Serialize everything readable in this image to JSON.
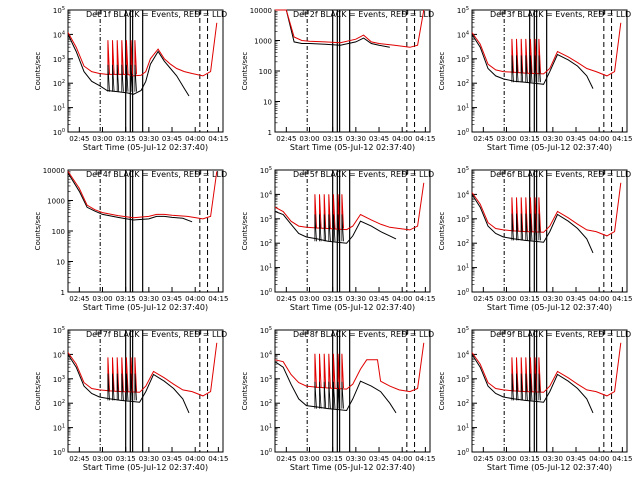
{
  "colors": {
    "events": "#000000",
    "lld": "#e00000",
    "frame": "#000000",
    "background": "#ffffff"
  },
  "x_axis": {
    "label": "Start Time (05-Jul-12 02:37:40)",
    "ticks": [
      "02:45",
      "03:00",
      "03:15",
      "03:30",
      "03:45",
      "04:00",
      "04:15"
    ]
  },
  "y_axis_label": "Counts/sec",
  "chart_data": [
    {
      "type": "line",
      "title": "Det 1f BLACK = Events, RED = LLD",
      "ylabel": "Counts/sec",
      "yscale": "log",
      "ylim": [
        1,
        100000
      ],
      "ytick_labels": [
        "10^0",
        "10^1",
        "10^2",
        "10^3",
        "10^4",
        "10^5"
      ],
      "xlabel": "Start Time (05-Jul-12 02:37:40)",
      "xlim": [
        "02:37:40",
        "04:18:00"
      ],
      "series": [
        {
          "name": "Events",
          "color": "#000000",
          "x": [
            "02:37:40",
            "02:43:00",
            "02:48:00",
            "02:53:00",
            "02:58:00",
            "03:03:00",
            "03:10:00",
            "03:16:00",
            "03:20:00",
            "03:25:00",
            "03:28:00",
            "03:31:00",
            "03:36:00",
            "03:40:00",
            "03:44:00",
            "03:48:00",
            "03:53:00",
            "03:56:00"
          ],
          "y": [
            10000,
            2000,
            300,
            120,
            80,
            50,
            45,
            40,
            35,
            50,
            120,
            600,
            2000,
            800,
            400,
            200,
            60,
            30
          ]
        },
        {
          "name": "LLD",
          "color": "#e00000",
          "x": [
            "02:37:40",
            "02:43:00",
            "02:48:00",
            "02:53:00",
            "02:58:00",
            "03:03:00",
            "03:10:00",
            "03:16:00",
            "03:20:00",
            "03:25:00",
            "03:28:00",
            "03:31:00",
            "03:36:00",
            "03:40:00",
            "03:44:00",
            "03:48:00",
            "03:53:00",
            "03:58:00",
            "04:05:00",
            "04:10:00",
            "04:14:00"
          ],
          "y": [
            12000,
            3000,
            500,
            300,
            250,
            230,
            230,
            230,
            200,
            210,
            300,
            1000,
            2500,
            1000,
            600,
            400,
            300,
            250,
            200,
            300,
            30000
          ]
        }
      ]
    },
    {
      "type": "line",
      "title": "Det 2f BLACK = Events, RED = LLD",
      "ylabel": "Counts/sec",
      "yscale": "log",
      "ylim": [
        1,
        10000
      ],
      "ytick_labels": [
        "1",
        "10",
        "100",
        "1000",
        "10000"
      ],
      "xlabel": "Start Time (05-Jul-12 02:37:40)",
      "xlim": [
        "02:37:40",
        "04:18:00"
      ],
      "series": [
        {
          "name": "Events",
          "color": "#000000",
          "x": [
            "02:37:40",
            "02:45:00",
            "02:50:00",
            "02:55:00",
            "03:00:00",
            "03:10:00",
            "03:20:00",
            "03:30:00",
            "03:35:00",
            "03:40:00",
            "03:45:00",
            "03:52:00"
          ],
          "y": [
            10000,
            10000,
            900,
            800,
            800,
            750,
            700,
            900,
            1200,
            800,
            700,
            600
          ]
        },
        {
          "name": "LLD",
          "color": "#e00000",
          "x": [
            "02:37:40",
            "02:45:00",
            "02:50:00",
            "02:55:00",
            "03:00:00",
            "03:10:00",
            "03:20:00",
            "03:30:00",
            "03:35:00",
            "03:40:00",
            "03:45:00",
            "03:55:00",
            "04:05:00",
            "04:10:00",
            "04:14:00"
          ],
          "y": [
            10000,
            10000,
            1300,
            1000,
            950,
            900,
            850,
            1100,
            1500,
            900,
            800,
            700,
            600,
            700,
            10000
          ]
        }
      ]
    },
    {
      "type": "line",
      "title": "Det 3f BLACK = Events, RED = LLD",
      "ylabel": "Counts/sec",
      "yscale": "log",
      "ylim": [
        1,
        100000
      ],
      "ytick_labels": [
        "10^0",
        "10^1",
        "10^2",
        "10^3",
        "10^4",
        "10^5"
      ],
      "xlabel": "Start Time (05-Jul-12 02:37:40)",
      "xlim": [
        "02:37:40",
        "04:18:00"
      ],
      "series": [
        {
          "name": "Events",
          "color": "#000000",
          "x": [
            "02:37:40",
            "02:43:00",
            "02:48:00",
            "02:53:00",
            "02:58:00",
            "03:05:00",
            "03:12:00",
            "03:18:00",
            "03:24:00",
            "03:28:00",
            "03:33:00",
            "03:40:00",
            "03:46:00",
            "03:52:00",
            "03:56:00"
          ],
          "y": [
            10000,
            3000,
            400,
            200,
            150,
            120,
            110,
            100,
            90,
            300,
            1500,
            900,
            500,
            200,
            60
          ]
        },
        {
          "name": "LLD",
          "color": "#e00000",
          "x": [
            "02:37:40",
            "02:43:00",
            "02:48:00",
            "02:53:00",
            "02:58:00",
            "03:05:00",
            "03:12:00",
            "03:18:00",
            "03:24:00",
            "03:28:00",
            "03:33:00",
            "03:40:00",
            "03:46:00",
            "03:52:00",
            "03:58:00",
            "04:05:00",
            "04:10:00",
            "04:14:00"
          ],
          "y": [
            12000,
            4000,
            600,
            350,
            300,
            280,
            260,
            250,
            240,
            400,
            2000,
            1200,
            700,
            400,
            300,
            200,
            300,
            30000
          ]
        }
      ]
    },
    {
      "type": "line",
      "title": "Det 4f BLACK = Events, RED = LLD",
      "ylabel": "Counts/sec",
      "yscale": "log",
      "ylim": [
        1,
        10000
      ],
      "ytick_labels": [
        "1",
        "10",
        "100",
        "1000",
        "10000"
      ],
      "xlabel": "Start Time (05-Jul-12 02:37:40)",
      "xlim": [
        "02:37:40",
        "04:18:00"
      ],
      "series": [
        {
          "name": "Events",
          "color": "#000000",
          "x": [
            "02:37:40",
            "02:45:00",
            "02:50:00",
            "02:55:00",
            "03:00:00",
            "03:10:00",
            "03:20:00",
            "03:30:00",
            "03:35:00",
            "03:40:00",
            "03:45:00",
            "03:52:00",
            "03:58:00"
          ],
          "y": [
            8000,
            2000,
            600,
            450,
            350,
            280,
            230,
            250,
            300,
            300,
            280,
            260,
            200
          ]
        },
        {
          "name": "LLD",
          "color": "#e00000",
          "x": [
            "02:37:40",
            "02:45:00",
            "02:50:00",
            "02:55:00",
            "03:00:00",
            "03:10:00",
            "03:20:00",
            "03:30:00",
            "03:35:00",
            "03:40:00",
            "03:45:00",
            "03:55:00",
            "04:05:00",
            "04:10:00",
            "04:14:00"
          ],
          "y": [
            9000,
            2500,
            700,
            500,
            400,
            320,
            270,
            300,
            350,
            350,
            330,
            300,
            250,
            300,
            9000
          ]
        }
      ]
    },
    {
      "type": "line",
      "title": "Det 5f BLACK = Events, RED = LLD",
      "ylabel": "Counts/sec",
      "yscale": "log",
      "ylim": [
        1,
        100000
      ],
      "ytick_labels": [
        "10^0",
        "10^1",
        "10^2",
        "10^3",
        "10^4",
        "10^5"
      ],
      "xlabel": "Start Time (05-Jul-12 02:37:40)",
      "xlim": [
        "02:37:40",
        "04:18:00"
      ],
      "series": [
        {
          "name": "Events",
          "color": "#000000",
          "x": [
            "02:37:40",
            "02:43:00",
            "02:48:00",
            "02:53:00",
            "02:58:00",
            "03:05:00",
            "03:12:00",
            "03:18:00",
            "03:24:00",
            "03:28:00",
            "03:33:00",
            "03:40:00",
            "03:46:00",
            "03:52:00",
            "03:56:00"
          ],
          "y": [
            2000,
            1500,
            600,
            250,
            180,
            150,
            120,
            110,
            100,
            200,
            800,
            500,
            300,
            200,
            150
          ]
        },
        {
          "name": "LLD",
          "color": "#e00000",
          "x": [
            "02:37:40",
            "02:43:00",
            "02:48:00",
            "02:53:00",
            "02:58:00",
            "03:05:00",
            "03:12:00",
            "03:18:00",
            "03:24:00",
            "03:28:00",
            "03:33:00",
            "03:40:00",
            "03:46:00",
            "03:52:00",
            "03:58:00",
            "04:05:00",
            "04:10:00",
            "04:14:00"
          ],
          "y": [
            3000,
            2000,
            800,
            500,
            450,
            420,
            400,
            380,
            360,
            500,
            1500,
            900,
            600,
            450,
            400,
            350,
            500,
            30000
          ]
        }
      ]
    },
    {
      "type": "line",
      "title": "Det 6f BLACK = Events, RED = LLD",
      "ylabel": "Counts/sec",
      "yscale": "log",
      "ylim": [
        1,
        100000
      ],
      "ytick_labels": [
        "10^0",
        "10^1",
        "10^2",
        "10^3",
        "10^4",
        "10^5"
      ],
      "xlabel": "Start Time (05-Jul-12 02:37:40)",
      "xlim": [
        "02:37:40",
        "04:18:00"
      ],
      "series": [
        {
          "name": "Events",
          "color": "#000000",
          "x": [
            "02:37:40",
            "02:43:00",
            "02:48:00",
            "02:53:00",
            "02:58:00",
            "03:05:00",
            "03:12:00",
            "03:18:00",
            "03:24:00",
            "03:28:00",
            "03:33:00",
            "03:40:00",
            "03:46:00",
            "03:52:00",
            "03:56:00"
          ],
          "y": [
            10000,
            3000,
            500,
            250,
            180,
            150,
            130,
            120,
            110,
            300,
            1500,
            800,
            400,
            150,
            40
          ]
        },
        {
          "name": "LLD",
          "color": "#e00000",
          "x": [
            "02:37:40",
            "02:43:00",
            "02:48:00",
            "02:53:00",
            "02:58:00",
            "03:05:00",
            "03:12:00",
            "03:18:00",
            "03:24:00",
            "03:28:00",
            "03:33:00",
            "03:40:00",
            "03:46:00",
            "03:52:00",
            "03:58:00",
            "04:05:00",
            "04:10:00",
            "04:14:00"
          ],
          "y": [
            12000,
            4000,
            700,
            400,
            350,
            320,
            300,
            290,
            280,
            500,
            2000,
            1100,
            600,
            350,
            300,
            200,
            300,
            30000
          ]
        }
      ]
    },
    {
      "type": "line",
      "title": "Det 7f BLACK = Events, RED = LLD",
      "ylabel": "Counts/sec",
      "yscale": "log",
      "ylim": [
        1,
        100000
      ],
      "ytick_labels": [
        "10^0",
        "10^1",
        "10^2",
        "10^3",
        "10^4",
        "10^5"
      ],
      "xlabel": "Start Time (05-Jul-12 02:37:40)",
      "xlim": [
        "02:37:40",
        "04:18:00"
      ],
      "series": [
        {
          "name": "Events",
          "color": "#000000",
          "x": [
            "02:37:40",
            "02:43:00",
            "02:48:00",
            "02:53:00",
            "02:58:00",
            "03:05:00",
            "03:12:00",
            "03:18:00",
            "03:24:00",
            "03:28:00",
            "03:33:00",
            "03:40:00",
            "03:46:00",
            "03:52:00",
            "03:56:00"
          ],
          "y": [
            10000,
            3000,
            500,
            250,
            180,
            150,
            130,
            120,
            110,
            300,
            1500,
            800,
            400,
            150,
            40
          ]
        },
        {
          "name": "LLD",
          "color": "#e00000",
          "x": [
            "02:37:40",
            "02:43:00",
            "02:48:00",
            "02:53:00",
            "02:58:00",
            "03:05:00",
            "03:12:00",
            "03:18:00",
            "03:24:00",
            "03:28:00",
            "03:33:00",
            "03:40:00",
            "03:46:00",
            "03:52:00",
            "03:58:00",
            "04:05:00",
            "04:10:00",
            "04:14:00"
          ],
          "y": [
            12000,
            4000,
            700,
            400,
            350,
            320,
            300,
            290,
            280,
            500,
            2000,
            1100,
            600,
            350,
            300,
            200,
            300,
            30000
          ]
        }
      ]
    },
    {
      "type": "line",
      "title": "Det 8f BLACK = Events, RED = LLD",
      "ylabel": "Counts/sec",
      "yscale": "log",
      "ylim": [
        1,
        100000
      ],
      "ytick_labels": [
        "10^0",
        "10^1",
        "10^2",
        "10^3",
        "10^4",
        "10^5"
      ],
      "xlabel": "Start Time (05-Jul-12 02:37:40)",
      "xlim": [
        "02:37:40",
        "04:18:00"
      ],
      "series": [
        {
          "name": "Events",
          "color": "#000000",
          "x": [
            "02:37:40",
            "02:43:00",
            "02:48:00",
            "02:53:00",
            "02:58:00",
            "03:05:00",
            "03:12:00",
            "03:18:00",
            "03:24:00",
            "03:28:00",
            "03:33:00",
            "03:40:00",
            "03:46:00",
            "03:52:00",
            "03:56:00"
          ],
          "y": [
            5000,
            3000,
            600,
            150,
            80,
            70,
            60,
            55,
            50,
            150,
            800,
            500,
            300,
            100,
            40
          ]
        },
        {
          "name": "LLD",
          "color": "#e00000",
          "x": [
            "02:37:40",
            "02:43:00",
            "02:48:00",
            "02:53:00",
            "02:58:00",
            "03:05:00",
            "03:12:00",
            "03:18:00",
            "03:24:00",
            "03:28:00",
            "03:33:00",
            "03:37:00",
            "03:44:00",
            "03:46:00",
            "03:52:00",
            "03:58:00",
            "04:05:00",
            "04:10:00",
            "04:14:00"
          ],
          "y": [
            6000,
            5000,
            1500,
            700,
            500,
            450,
            420,
            400,
            380,
            600,
            2500,
            6000,
            6000,
            800,
            500,
            350,
            300,
            400,
            30000
          ]
        }
      ]
    },
    {
      "type": "line",
      "title": "Det 9f BLACK = Events, RED = LLD",
      "ylabel": "Counts/sec",
      "yscale": "log",
      "ylim": [
        1,
        100000
      ],
      "ytick_labels": [
        "10^0",
        "10^1",
        "10^2",
        "10^3",
        "10^4",
        "10^5"
      ],
      "xlabel": "Start Time (05-Jul-12 02:37:40)",
      "xlim": [
        "02:37:40",
        "04:18:00"
      ],
      "series": [
        {
          "name": "Events",
          "color": "#000000",
          "x": [
            "02:37:40",
            "02:43:00",
            "02:48:00",
            "02:53:00",
            "02:58:00",
            "03:05:00",
            "03:12:00",
            "03:18:00",
            "03:24:00",
            "03:28:00",
            "03:33:00",
            "03:40:00",
            "03:46:00",
            "03:52:00",
            "03:56:00"
          ],
          "y": [
            10000,
            3000,
            500,
            250,
            180,
            150,
            130,
            120,
            110,
            300,
            1500,
            800,
            400,
            150,
            40
          ]
        },
        {
          "name": "LLD",
          "color": "#e00000",
          "x": [
            "02:37:40",
            "02:43:00",
            "02:48:00",
            "02:53:00",
            "02:58:00",
            "03:05:00",
            "03:12:00",
            "03:18:00",
            "03:24:00",
            "03:28:00",
            "03:33:00",
            "03:40:00",
            "03:46:00",
            "03:52:00",
            "03:58:00",
            "04:05:00",
            "04:10:00",
            "04:14:00"
          ],
          "y": [
            12000,
            4000,
            700,
            400,
            350,
            320,
            300,
            290,
            280,
            500,
            2000,
            1100,
            600,
            350,
            300,
            200,
            300,
            30000
          ]
        }
      ]
    }
  ]
}
